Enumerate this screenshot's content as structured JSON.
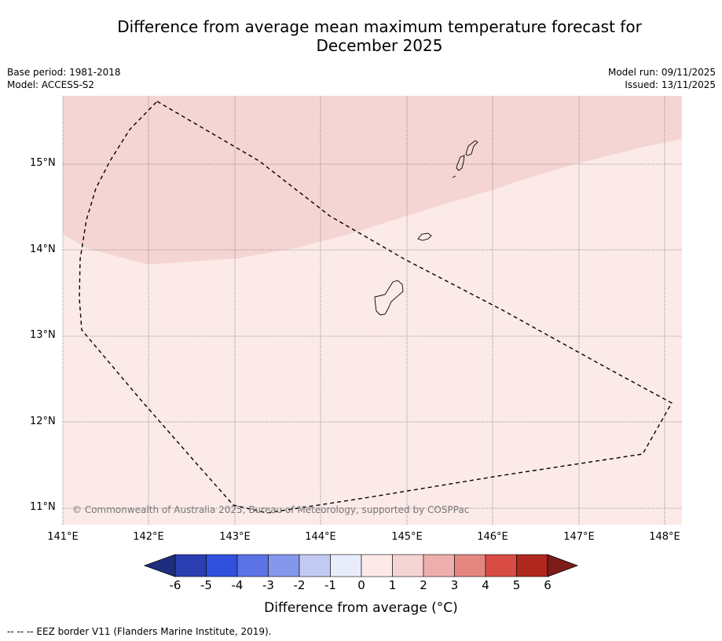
{
  "title_line1": "Difference from average mean maximum temperature forecast for",
  "title_line2": "December 2025",
  "meta_left": {
    "base_period": "Base period: 1981-2018",
    "model": "Model: ACCESS-S2"
  },
  "meta_right": {
    "model_run": "Model run: 09/11/2025",
    "issued": "Issued: 13/11/2025"
  },
  "copyright": "© Commonwealth of Australia 2025, Bureau of Meteorology, supported by COSPPac",
  "latitude_labels": [
    "15°N",
    "14°N",
    "13°N",
    "12°N",
    "11°N"
  ],
  "longitude_labels": [
    "141°E",
    "142°E",
    "143°E",
    "144°E",
    "145°E",
    "146°E",
    "147°E",
    "148°E"
  ],
  "colorbar": {
    "ticks": [
      "-6",
      "-5",
      "-4",
      "-3",
      "-2",
      "-1",
      "0",
      "1",
      "2",
      "3",
      "4",
      "5",
      "6"
    ],
    "colors": [
      "#1f2d80",
      "#2a3eb1",
      "#3150dd",
      "#5b73e5",
      "#8597eb",
      "#c2c9f3",
      "#e8ecfb",
      "#fbeae8",
      "#f5d5d3",
      "#eeaeac",
      "#e58680",
      "#d84c45",
      "#b0271f",
      "#7e1c1a"
    ],
    "title": "Difference from average (°C)"
  },
  "map_fill_colors": {
    "zone_0_to_1": "#fbeae8",
    "zone_1_to_2": "#f5d5d3"
  },
  "footer": "--  --  -- EEZ border V11 (Flanders Marine Institute, 2019)."
}
